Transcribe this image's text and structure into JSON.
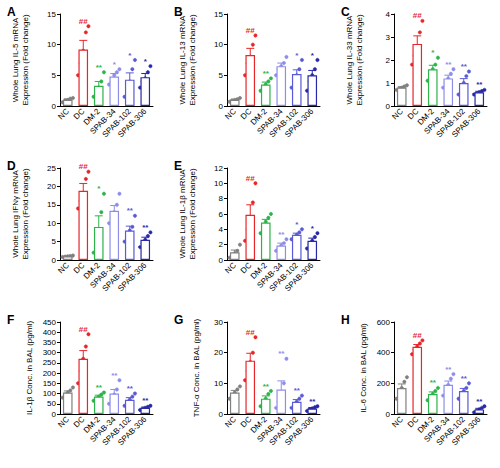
{
  "chart_data": [
    {
      "type": "bar",
      "title": "A",
      "y_label": "Whole Lung IL-5 mRNA\nExpression (Fold change)",
      "categories": [
        "NC",
        "DC",
        "DM-2",
        "SPAB-34",
        "SPAB-102",
        "SPAB-306"
      ],
      "colors": [
        "#808080",
        "#e8262a",
        "#2db34a",
        "#8e8ee8",
        "#5a5ad6",
        "#2929a8"
      ],
      "values": [
        1.0,
        9.2,
        3.3,
        4.8,
        4.3,
        4.7
      ],
      "errors": [
        0.15,
        1.5,
        0.7,
        0.5,
        1.1,
        0.6
      ],
      "points": [
        [
          0.6,
          0.9,
          1.0,
          1.2,
          1.3
        ],
        [
          5,
          7,
          9,
          12,
          13
        ],
        [
          1.5,
          2.5,
          3,
          4,
          5.5
        ],
        [
          3.5,
          4,
          5,
          5.5,
          6
        ],
        [
          1.5,
          2.5,
          4,
          6,
          7.5
        ],
        [
          3,
          4,
          4.5,
          5.5,
          6.5
        ]
      ],
      "significance": [
        null,
        "##",
        "**",
        "*",
        "*",
        "*"
      ],
      "ylim": [
        0,
        15
      ],
      "yticks": [
        0,
        5,
        10,
        15
      ],
      "grid": false
    },
    {
      "type": "bar",
      "title": "B",
      "y_label": "Whole Lung IL-13 mRNA\nExpression (Fold change)",
      "categories": [
        "NC",
        "DC",
        "DM-2",
        "SPAB-34",
        "SPAB-102",
        "SPAB-306"
      ],
      "colors": [
        "#808080",
        "#e8262a",
        "#2db34a",
        "#8e8ee8",
        "#5a5ad6",
        "#2929a8"
      ],
      "values": [
        1.0,
        8.3,
        3.5,
        6.5,
        5.2,
        5.0
      ],
      "errors": [
        0.1,
        1.1,
        0.4,
        0.5,
        0.7,
        0.8
      ],
      "points": [
        [
          0.7,
          0.9,
          1,
          1.1,
          1.3
        ],
        [
          5,
          7,
          8,
          10,
          11.5
        ],
        [
          2.5,
          3,
          3.5,
          4,
          4.5
        ],
        [
          5,
          6,
          6.5,
          7,
          8
        ],
        [
          3,
          4.5,
          5,
          6,
          7.5
        ],
        [
          2.5,
          4,
          5,
          6,
          7.5
        ]
      ],
      "significance": [
        null,
        "##",
        "**",
        null,
        "*",
        "*"
      ],
      "ylim": [
        0,
        15
      ],
      "yticks": [
        0,
        5,
        10,
        15
      ],
      "grid": false
    },
    {
      "type": "bar",
      "title": "C",
      "y_label": "Whole Lung IL-33 mRNA\nExpression (Fold change)",
      "categories": [
        "NC",
        "DC",
        "DM-2",
        "SPAB-34",
        "SPAB-102",
        "SPAB-306"
      ],
      "colors": [
        "#808080",
        "#e8262a",
        "#2db34a",
        "#8e8ee8",
        "#5a5ad6",
        "#2929a8"
      ],
      "values": [
        0.8,
        2.7,
        1.6,
        1.2,
        1.0,
        0.6
      ],
      "errors": [
        0.04,
        0.35,
        0.17,
        0.14,
        0.19,
        0.04
      ],
      "points": [
        [
          0.7,
          0.75,
          0.8,
          0.85,
          0.9
        ],
        [
          1.8,
          2.2,
          2.6,
          3.2,
          3.7
        ],
        [
          1.1,
          1.4,
          1.6,
          1.8,
          2.1
        ],
        [
          0.8,
          1,
          1.2,
          1.4,
          1.6
        ],
        [
          0.5,
          0.7,
          1,
          1.3,
          1.5
        ],
        [
          0.5,
          0.55,
          0.6,
          0.65,
          0.7
        ]
      ],
      "significance": [
        null,
        "##",
        "*",
        "**",
        "**",
        "**"
      ],
      "ylim": [
        0,
        4
      ],
      "yticks": [
        0,
        1,
        2,
        3,
        4
      ],
      "grid": false
    },
    {
      "type": "bar",
      "title": "D",
      "y_label": "Whole Lung IFNγ mRNA\nExpression (Fold change)",
      "categories": [
        "NC",
        "DC",
        "DM-2",
        "SPAB-34",
        "SPAB-102",
        "SPAB-306"
      ],
      "colors": [
        "#808080",
        "#e8262a",
        "#2db34a",
        "#8e8ee8",
        "#5a5ad6",
        "#2929a8"
      ],
      "values": [
        1.0,
        18.8,
        9.0,
        13.4,
        8.0,
        5.5
      ],
      "errors": [
        0.1,
        2.0,
        3.0,
        1.4,
        1.2,
        0.7
      ],
      "points": [
        [
          0.8,
          0.9,
          1,
          1.1,
          1.2
        ],
        [
          14,
          16,
          18,
          22,
          24
        ],
        [
          2,
          4,
          8,
          13,
          18
        ],
        [
          10,
          11,
          13,
          15,
          18
        ],
        [
          5,
          6,
          8,
          9,
          12
        ],
        [
          3.5,
          4.5,
          5.5,
          6.5,
          7.5
        ]
      ],
      "significance": [
        null,
        "##",
        "*",
        null,
        "**",
        "**"
      ],
      "ylim": [
        0,
        25
      ],
      "yticks": [
        0,
        5,
        10,
        15,
        20,
        25
      ],
      "grid": false
    },
    {
      "type": "bar",
      "title": "E",
      "y_label": "Whole Lung IL-1β mRNA\nExpression (Fold change)",
      "categories": [
        "NC",
        "DC",
        "DM-2",
        "SPAB-34",
        "SPAB-102",
        "SPAB-306"
      ],
      "colors": [
        "#808080",
        "#e8262a",
        "#2db34a",
        "#8e8ee8",
        "#5a5ad6",
        "#2929a8"
      ],
      "values": [
        1.0,
        5.9,
        4.9,
        1.9,
        3.3,
        2.5
      ],
      "errors": [
        0.3,
        1.3,
        0.4,
        0.3,
        0.2,
        0.35
      ],
      "points": [
        [
          0.3,
          0.6,
          0.9,
          1.2,
          2
        ],
        [
          2.5,
          4,
          5.5,
          7.5,
          10
        ],
        [
          3.5,
          4.5,
          5,
          5.5,
          6
        ],
        [
          1.2,
          1.5,
          1.9,
          2.2,
          2.7
        ],
        [
          2.7,
          3,
          3.3,
          3.6,
          4
        ],
        [
          1.5,
          2,
          2.5,
          3,
          3.5
        ]
      ],
      "significance": [
        null,
        "##",
        null,
        "**",
        "*",
        "*"
      ],
      "ylim": [
        0,
        12
      ],
      "yticks": [
        0,
        2,
        4,
        6,
        8,
        10,
        12
      ],
      "grid": false
    },
    {
      "type": "bar",
      "title": "F",
      "y_label": "IL-1β Conc. in BAL (pg/ml)",
      "categories": [
        "NC",
        "DC",
        "DM-2",
        "SPAB-34",
        "SPAB-102",
        "SPAB-306"
      ],
      "colors": [
        "#808080",
        "#e8262a",
        "#2db34a",
        "#8e8ee8",
        "#5a5ad6",
        "#2929a8"
      ],
      "values": [
        105,
        270,
        85,
        100,
        70,
        30
      ],
      "errors": [
        8,
        40,
        7,
        20,
        10,
        4
      ],
      "points": [
        [
          80,
          95,
          105,
          115,
          130
        ],
        [
          150,
          210,
          270,
          330,
          390
        ],
        [
          65,
          75,
          85,
          95,
          105
        ],
        [
          50,
          70,
          95,
          120,
          165
        ],
        [
          40,
          55,
          70,
          85,
          100
        ],
        [
          20,
          25,
          30,
          35,
          40
        ]
      ],
      "significance": [
        null,
        "##",
        "**",
        "**",
        "**",
        "**"
      ],
      "ylim": [
        0,
        450
      ],
      "yticks": [
        0,
        50,
        100,
        150,
        200,
        250,
        300,
        350,
        400,
        450
      ],
      "grid": false
    },
    {
      "type": "bar",
      "title": "G",
      "y_label": "TNF-α Conc. in BAL (pg/ml)",
      "categories": [
        "NC",
        "DC",
        "DM-2",
        "SPAB-34",
        "SPAB-102",
        "SPAB-306"
      ],
      "colors": [
        "#808080",
        "#e8262a",
        "#2db34a",
        "#8e8ee8",
        "#5a5ad6",
        "#2929a8"
      ],
      "values": [
        7,
        17.4,
        5,
        8,
        4,
        1.8
      ],
      "errors": [
        0.7,
        2.4,
        0.9,
        2.8,
        0.7,
        0.3
      ],
      "points": [
        [
          5,
          6,
          7,
          8,
          9
        ],
        [
          11,
          14,
          17,
          20,
          25
        ],
        [
          2.5,
          3.5,
          5,
          6.5,
          7.5
        ],
        [
          2,
          4,
          6,
          10,
          18
        ],
        [
          2,
          3,
          4,
          5,
          6
        ],
        [
          1,
          1.5,
          1.8,
          2.2,
          2.5
        ]
      ],
      "significance": [
        null,
        "##",
        "**",
        "**",
        "**",
        "**"
      ],
      "ylim": [
        0,
        30
      ],
      "yticks": [
        0,
        10,
        20,
        30
      ],
      "grid": false
    },
    {
      "type": "bar",
      "title": "H",
      "y_label": "IL-6 Conc. in BAL (pg/ml)",
      "categories": [
        "NC",
        "DC",
        "DM-2",
        "SPAB-34",
        "SPAB-102",
        "SPAB-306"
      ],
      "colors": [
        "#808080",
        "#e8262a",
        "#2db34a",
        "#8e8ee8",
        "#5a5ad6",
        "#2929a8"
      ],
      "values": [
        170,
        438,
        130,
        190,
        150,
        30
      ],
      "errors": [
        26,
        15,
        14,
        25,
        17,
        7
      ],
      "points": [
        [
          100,
          130,
          170,
          210,
          240
        ],
        [
          390,
          420,
          440,
          460,
          480
        ],
        [
          90,
          110,
          130,
          150,
          170
        ],
        [
          120,
          150,
          190,
          230,
          260
        ],
        [
          100,
          130,
          150,
          170,
          200
        ],
        [
          10,
          20,
          30,
          40,
          50
        ]
      ],
      "significance": [
        null,
        "##",
        "**",
        "**",
        "**",
        "**"
      ],
      "ylim": [
        0,
        600
      ],
      "yticks": [
        0,
        200,
        400,
        600
      ],
      "grid": false
    }
  ]
}
